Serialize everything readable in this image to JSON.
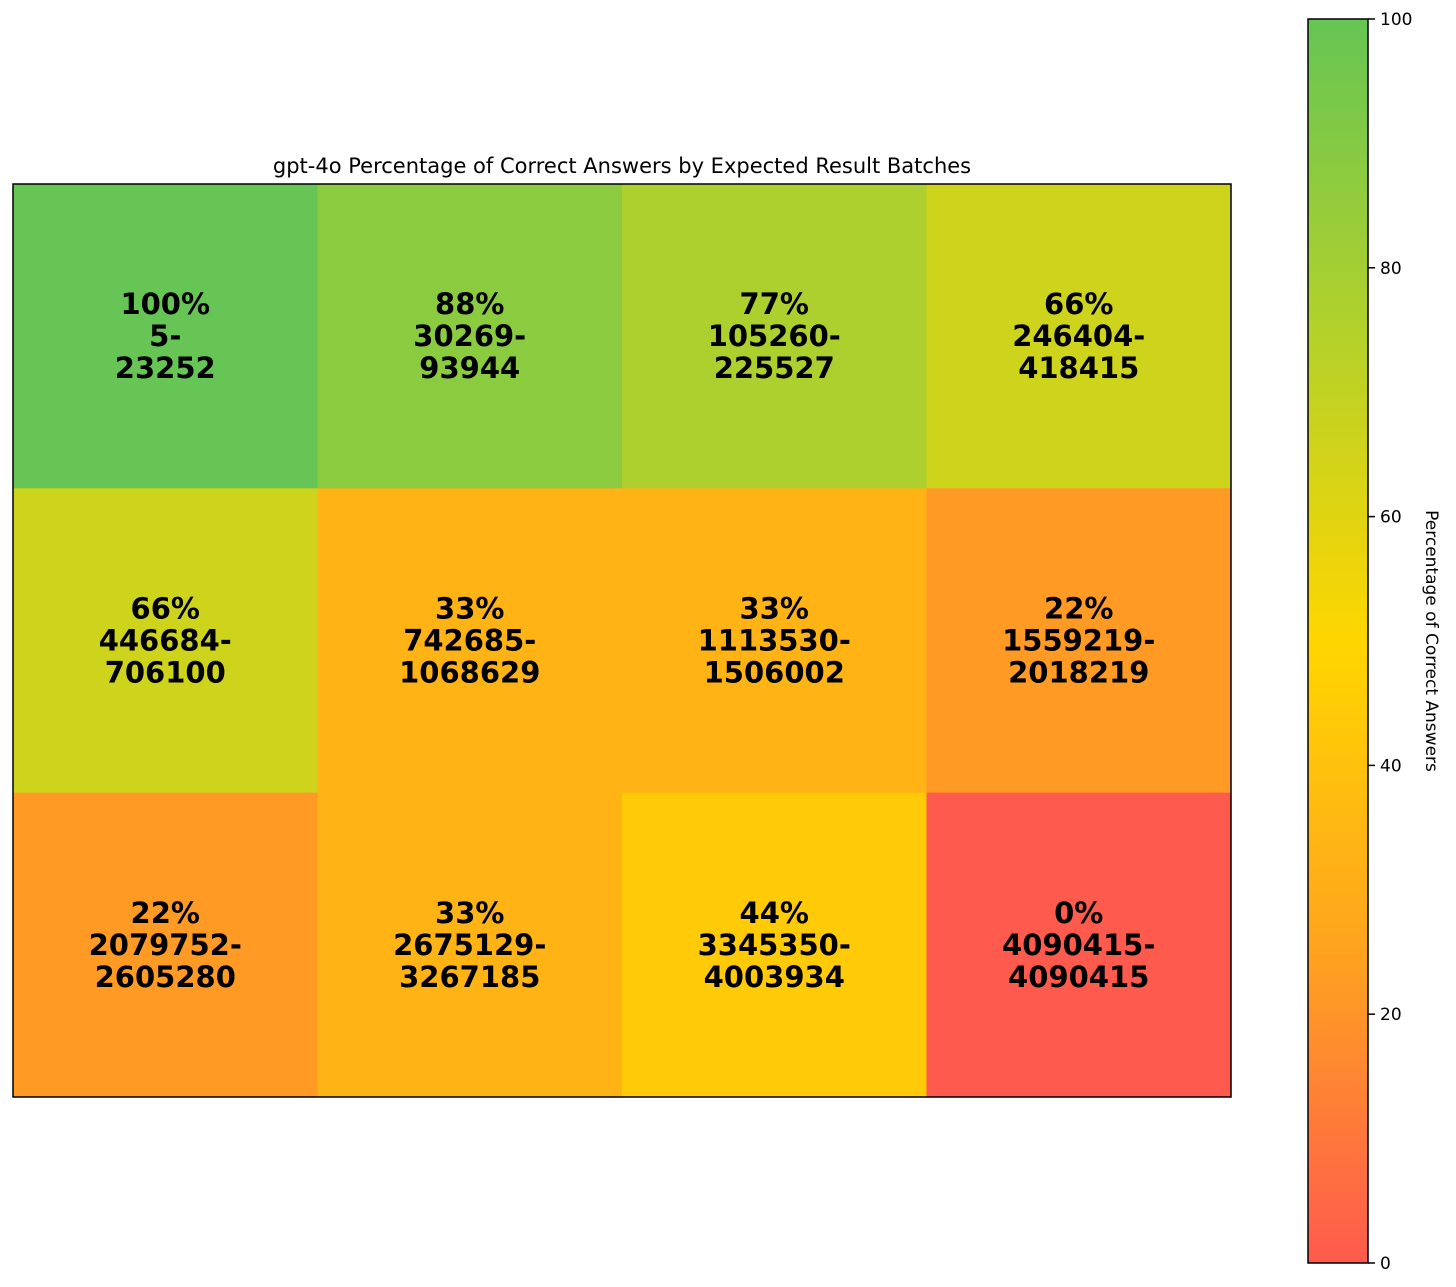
{
  "chart_data": {
    "type": "heatmap",
    "title": "gpt-4o Percentage of Correct Answers by Expected Result Batches",
    "rows": 3,
    "cols": 4,
    "cells": [
      [
        {
          "value": 100,
          "label": "100%",
          "range_start": "5-",
          "range_end": "23252"
        },
        {
          "value": 88,
          "label": "88%",
          "range_start": "30269-",
          "range_end": "93944"
        },
        {
          "value": 77,
          "label": "77%",
          "range_start": "105260-",
          "range_end": "225527"
        },
        {
          "value": 66,
          "label": "66%",
          "range_start": "246404-",
          "range_end": "418415"
        }
      ],
      [
        {
          "value": 66,
          "label": "66%",
          "range_start": "446684-",
          "range_end": "706100"
        },
        {
          "value": 33,
          "label": "33%",
          "range_start": "742685-",
          "range_end": "1068629"
        },
        {
          "value": 33,
          "label": "33%",
          "range_start": "1113530-",
          "range_end": "1506002"
        },
        {
          "value": 22,
          "label": "22%",
          "range_start": "1559219-",
          "range_end": "2018219"
        }
      ],
      [
        {
          "value": 22,
          "label": "22%",
          "range_start": "2079752-",
          "range_end": "2605280"
        },
        {
          "value": 33,
          "label": "33%",
          "range_start": "2675129-",
          "range_end": "3267185"
        },
        {
          "value": 44,
          "label": "44%",
          "range_start": "3345350-",
          "range_end": "4003934"
        },
        {
          "value": 0,
          "label": "0%",
          "range_start": "4090415-",
          "range_end": "4090415"
        }
      ]
    ],
    "colorbar": {
      "label": "Percentage of Correct Answers",
      "range": [
        0,
        100
      ],
      "ticks": [
        "0",
        "20",
        "40",
        "60",
        "80",
        "100"
      ],
      "colormap": [
        {
          "value": 0,
          "color": "#ff5a4e"
        },
        {
          "value": 25,
          "color": "#ffa31f"
        },
        {
          "value": 50,
          "color": "#ffd600"
        },
        {
          "value": 75,
          "color": "#b3d12b"
        },
        {
          "value": 100,
          "color": "#66c554"
        }
      ]
    }
  }
}
